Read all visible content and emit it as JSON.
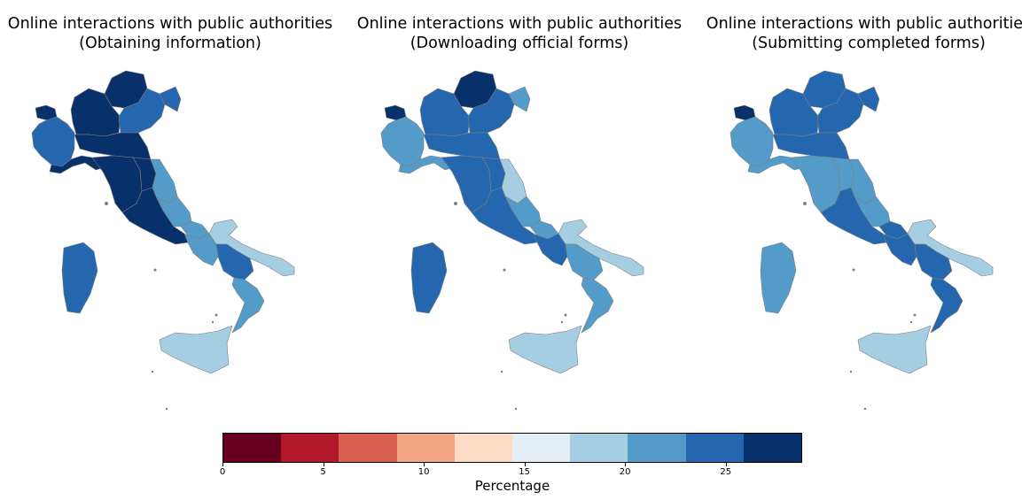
{
  "maps": [
    {
      "title_line1": "Online interactions with public authorities",
      "title_line2": "(Obtaining information)",
      "region_values": {
        "valle_daosta": 28,
        "piemonte": 24,
        "lombardia": 28,
        "trentino": 28,
        "veneto": 24,
        "friuli": 24,
        "liguria": 28,
        "emilia": 28,
        "toscana": 28,
        "umbria": 28,
        "marche": 22,
        "lazio": 28,
        "abruzzo": 22,
        "molise": 22,
        "campania": 22,
        "puglia": 19,
        "basilicata": 25,
        "calabria": 22,
        "sicilia": 19,
        "sardegna": 25
      }
    },
    {
      "title_line1": "Online interactions with public authorities",
      "title_line2": "(Downloading official forms)",
      "region_values": {
        "valle_daosta": 28,
        "piemonte": 22,
        "lombardia": 25,
        "trentino": 28,
        "veneto": 25,
        "friuli": 22,
        "liguria": 22,
        "emilia": 25,
        "toscana": 25,
        "umbria": 25,
        "marche": 19,
        "lazio": 25,
        "abruzzo": 22,
        "molise": 22,
        "campania": 25,
        "puglia": 19,
        "basilicata": 22,
        "calabria": 22,
        "sicilia": 19,
        "sardegna": 25
      }
    },
    {
      "title_line1": "Online interactions with public authorities",
      "title_line2": "(Submitting completed forms)",
      "region_values": {
        "valle_daosta": 28,
        "piemonte": 22,
        "lombardia": 25,
        "trentino": 25,
        "veneto": 25,
        "friuli": 25,
        "liguria": 22,
        "emilia": 25,
        "toscana": 22,
        "umbria": 22,
        "marche": 22,
        "lazio": 25,
        "abruzzo": 22,
        "molise": 25,
        "campania": 25,
        "puglia": 19,
        "basilicata": 25,
        "calabria": 25,
        "sicilia": 19,
        "sardegna": 22
      }
    }
  ],
  "colorbar": {
    "label": "Percentage",
    "min": 0,
    "max": 28.8,
    "colors": [
      "#67001f",
      "#b2182b",
      "#d6604d",
      "#f4a582",
      "#fddbc7",
      "#e4eef5",
      "#a6cee3",
      "#539bc9",
      "#2467ae",
      "#08306b"
    ],
    "ticks": [
      {
        "value": 0,
        "label": "0"
      },
      {
        "value": 5,
        "label": "5"
      },
      {
        "value": 10,
        "label": "10"
      },
      {
        "value": 15,
        "label": "15"
      },
      {
        "value": 20,
        "label": "20"
      },
      {
        "value": 25,
        "label": "25"
      }
    ]
  }
}
